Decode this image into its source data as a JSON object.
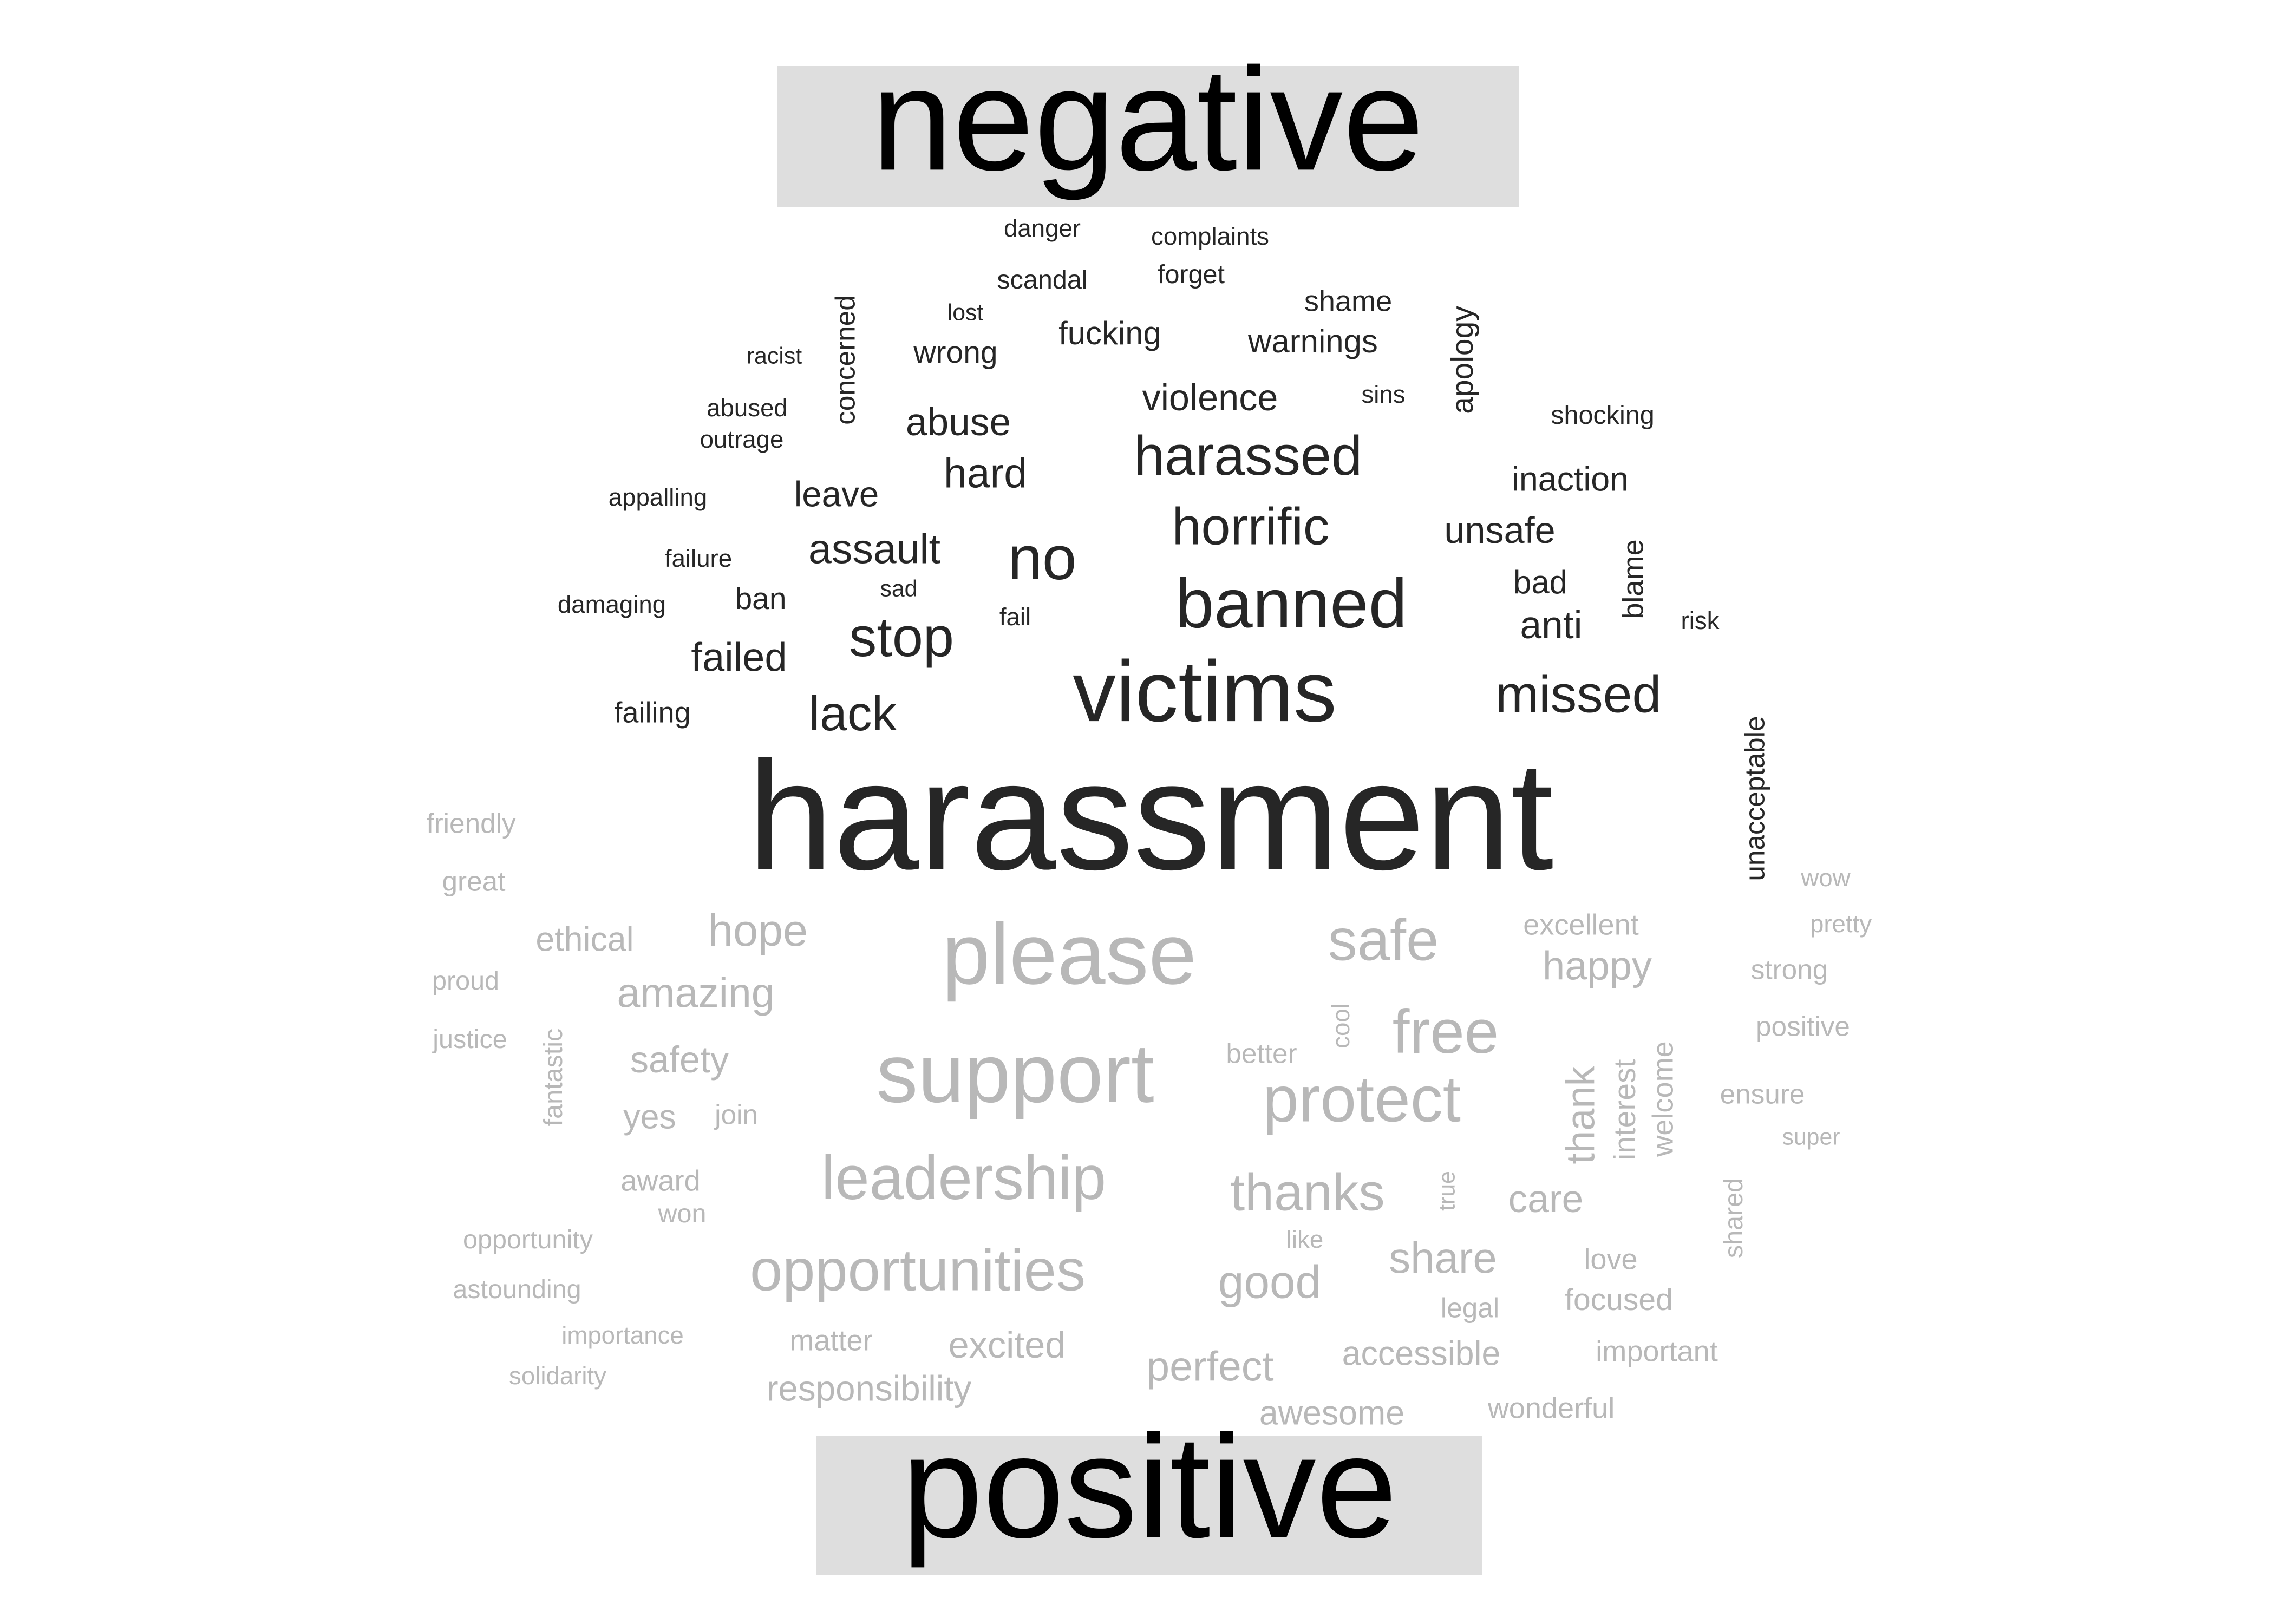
{
  "chart_data": {
    "type": "wordcloud",
    "title": "",
    "colors": {
      "negative": "#262626",
      "positive": "#b8b8b8",
      "label_box": "#dedede",
      "label_text": "#000000"
    },
    "groups": [
      {
        "name": "negative",
        "words": [
          {
            "text": "danger",
            "size": 16
          },
          {
            "text": "complaints",
            "size": 16
          },
          {
            "text": "scandal",
            "size": 17
          },
          {
            "text": "forget",
            "size": 17
          },
          {
            "text": "concerned",
            "size": 18
          },
          {
            "text": "lost",
            "size": 15
          },
          {
            "text": "shame",
            "size": 19
          },
          {
            "text": "apology",
            "size": 20
          },
          {
            "text": "racist",
            "size": 15
          },
          {
            "text": "wrong",
            "size": 20
          },
          {
            "text": "fucking",
            "size": 21
          },
          {
            "text": "warnings",
            "size": 21
          },
          {
            "text": "abused",
            "size": 16
          },
          {
            "text": "violence",
            "size": 24
          },
          {
            "text": "sins",
            "size": 16
          },
          {
            "text": "shocking",
            "size": 17
          },
          {
            "text": "outrage",
            "size": 16
          },
          {
            "text": "abuse",
            "size": 25
          },
          {
            "text": "harassed",
            "size": 36
          },
          {
            "text": "hard",
            "size": 27
          },
          {
            "text": "inaction",
            "size": 22
          },
          {
            "text": "appalling",
            "size": 16
          },
          {
            "text": "leave",
            "size": 23
          },
          {
            "text": "horrific",
            "size": 34
          },
          {
            "text": "unsafe",
            "size": 24
          },
          {
            "text": "blame",
            "size": 19
          },
          {
            "text": "failure",
            "size": 16
          },
          {
            "text": "assault",
            "size": 27
          },
          {
            "text": "no",
            "size": 40
          },
          {
            "text": "bad",
            "size": 21
          },
          {
            "text": "damaging",
            "size": 16
          },
          {
            "text": "ban",
            "size": 20
          },
          {
            "text": "sad",
            "size": 15
          },
          {
            "text": "banned",
            "size": 45
          },
          {
            "text": "fail",
            "size": 16
          },
          {
            "text": "risk",
            "size": 16
          },
          {
            "text": "anti",
            "size": 25
          },
          {
            "text": "failed",
            "size": 26
          },
          {
            "text": "stop",
            "size": 36
          },
          {
            "text": "victims",
            "size": 56
          },
          {
            "text": "missed",
            "size": 34
          },
          {
            "text": "unacceptable",
            "size": 18
          },
          {
            "text": "failing",
            "size": 19
          },
          {
            "text": "lack",
            "size": 32
          },
          {
            "text": "harassment",
            "size": 100
          }
        ]
      },
      {
        "name": "positive",
        "words": [
          {
            "text": "friendly",
            "size": 18
          },
          {
            "text": "great",
            "size": 18
          },
          {
            "text": "wow",
            "size": 16
          },
          {
            "text": "ethical",
            "size": 22
          },
          {
            "text": "hope",
            "size": 29
          },
          {
            "text": "please",
            "size": 56
          },
          {
            "text": "safe",
            "size": 38
          },
          {
            "text": "excellent",
            "size": 19
          },
          {
            "text": "pretty",
            "size": 16
          },
          {
            "text": "proud",
            "size": 17
          },
          {
            "text": "amazing",
            "size": 27
          },
          {
            "text": "happy",
            "size": 26
          },
          {
            "text": "strong",
            "size": 18
          },
          {
            "text": "fantastic",
            "size": 17
          },
          {
            "text": "cool",
            "size": 16
          },
          {
            "text": "free",
            "size": 40
          },
          {
            "text": "justice",
            "size": 17
          },
          {
            "text": "positive",
            "size": 18
          },
          {
            "text": "safety",
            "size": 24
          },
          {
            "text": "support",
            "size": 54
          },
          {
            "text": "better",
            "size": 18
          },
          {
            "text": "protect",
            "size": 42
          },
          {
            "text": "thank",
            "size": 26
          },
          {
            "text": "interest",
            "size": 20
          },
          {
            "text": "welcome",
            "size": 19
          },
          {
            "text": "ensure",
            "size": 18
          },
          {
            "text": "yes",
            "size": 22
          },
          {
            "text": "join",
            "size": 18
          },
          {
            "text": "super",
            "size": 15
          },
          {
            "text": "award",
            "size": 19
          },
          {
            "text": "leadership",
            "size": 40
          },
          {
            "text": "thanks",
            "size": 34
          },
          {
            "text": "true",
            "size": 15
          },
          {
            "text": "care",
            "size": 25
          },
          {
            "text": "shared",
            "size": 17
          },
          {
            "text": "won",
            "size": 17
          },
          {
            "text": "opportunity",
            "size": 17
          },
          {
            "text": "like",
            "size": 16
          },
          {
            "text": "love",
            "size": 19
          },
          {
            "text": "opportunities",
            "size": 38
          },
          {
            "text": "good",
            "size": 30
          },
          {
            "text": "share",
            "size": 28
          },
          {
            "text": "astounding",
            "size": 17
          },
          {
            "text": "legal",
            "size": 18
          },
          {
            "text": "focused",
            "size": 20
          },
          {
            "text": "importance",
            "size": 16
          },
          {
            "text": "matter",
            "size": 19
          },
          {
            "text": "excited",
            "size": 24
          },
          {
            "text": "perfect",
            "size": 27
          },
          {
            "text": "accessible",
            "size": 22
          },
          {
            "text": "important",
            "size": 19
          },
          {
            "text": "solidarity",
            "size": 16
          },
          {
            "text": "responsibility",
            "size": 23
          },
          {
            "text": "awesome",
            "size": 22
          },
          {
            "text": "wonderful",
            "size": 19
          }
        ]
      }
    ]
  }
}
